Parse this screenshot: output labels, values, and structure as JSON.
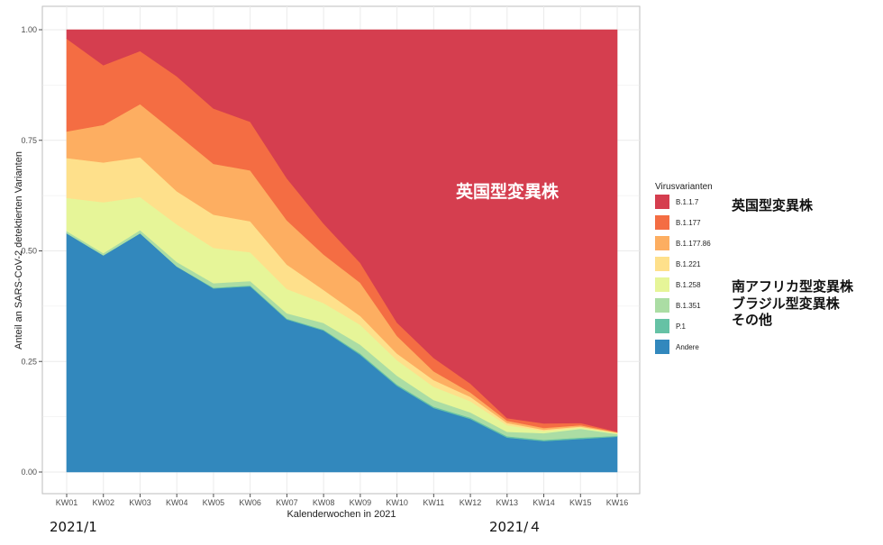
{
  "chart_data": {
    "type": "area",
    "stacked": true,
    "xlabel": "Kalenderwochen in 2021",
    "ylabel": "Anteil an SARS-CoV-2 detektierten Varianten",
    "ylim": [
      0,
      1
    ],
    "y_ticks": [
      "0.00",
      "0.25",
      "0.50",
      "0.75",
      "1.00"
    ],
    "grid": true,
    "legend_title": "Virusvarianten",
    "legend_position": "right",
    "categories": [
      "KW01",
      "KW02",
      "KW03",
      "KW04",
      "KW05",
      "KW06",
      "KW07",
      "KW08",
      "KW09",
      "KW10",
      "KW11",
      "KW12",
      "KW13",
      "KW14",
      "KW15",
      "KW16"
    ],
    "series": [
      {
        "name": "Andere",
        "color": "#3288bd",
        "values": [
          0.54,
          0.49,
          0.54,
          0.465,
          0.415,
          0.42,
          0.345,
          0.32,
          0.265,
          0.195,
          0.145,
          0.12,
          0.078,
          0.07,
          0.075,
          0.08
        ]
      },
      {
        "name": "P.1",
        "color": "#66c2a5",
        "values": [
          0.0,
          0.0,
          0.0,
          0.0,
          0.002,
          0.002,
          0.002,
          0.002,
          0.003,
          0.003,
          0.003,
          0.003,
          0.003,
          0.003,
          0.003,
          0.002
        ]
      },
      {
        "name": "B.1.351",
        "color": "#abdda4",
        "values": [
          0.005,
          0.005,
          0.007,
          0.01,
          0.01,
          0.01,
          0.012,
          0.015,
          0.02,
          0.02,
          0.015,
          0.012,
          0.01,
          0.015,
          0.02,
          0.004
        ]
      },
      {
        "name": "B.1.258",
        "color": "#e6f598",
        "values": [
          0.075,
          0.115,
          0.075,
          0.085,
          0.08,
          0.065,
          0.055,
          0.045,
          0.045,
          0.035,
          0.03,
          0.025,
          0.015,
          0.005,
          0.003,
          0.002
        ]
      },
      {
        "name": "B.1.221",
        "color": "#fee08b",
        "values": [
          0.09,
          0.09,
          0.09,
          0.075,
          0.075,
          0.07,
          0.055,
          0.03,
          0.02,
          0.015,
          0.015,
          0.01,
          0.005,
          0.003,
          0.002,
          0.001
        ]
      },
      {
        "name": "B.1.177.86",
        "color": "#fdae61",
        "values": [
          0.06,
          0.085,
          0.12,
          0.13,
          0.115,
          0.115,
          0.1,
          0.08,
          0.075,
          0.04,
          0.02,
          0.01,
          0.005,
          0.004,
          0.003,
          0.001
        ]
      },
      {
        "name": "B.1.177",
        "color": "#f46d43",
        "values": [
          0.21,
          0.135,
          0.12,
          0.13,
          0.125,
          0.11,
          0.095,
          0.07,
          0.045,
          0.03,
          0.03,
          0.02,
          0.006,
          0.01,
          0.005,
          0.001
        ]
      },
      {
        "name": "B.1.1.7",
        "color": "#d53e4f",
        "values": [
          0.02,
          0.08,
          0.048,
          0.105,
          0.178,
          0.208,
          0.336,
          0.438,
          0.527,
          0.662,
          0.742,
          0.8,
          0.878,
          0.89,
          0.889,
          0.909
        ]
      }
    ]
  },
  "annotations": {
    "inside_label": "英国型変異株",
    "right_labels": [
      "英国型変異株",
      "南アフリカ型変異株",
      "ブラジル型変異株",
      "その他"
    ],
    "date_start": "2021/1",
    "date_end": "2021/４"
  }
}
